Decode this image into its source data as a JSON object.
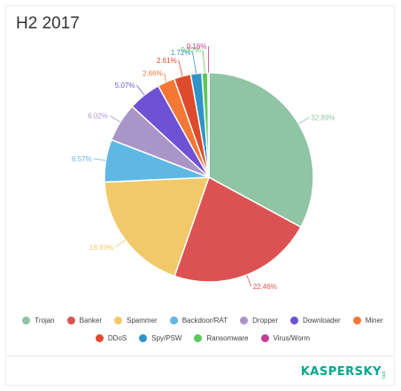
{
  "chart_data": {
    "type": "pie",
    "title": "H2 2017",
    "categories": [
      "Trojan",
      "Banker",
      "Spammer",
      "Backdoor/RAT",
      "Dropper",
      "Downloader",
      "Miner",
      "DDoS",
      "Spy/PSW",
      "Ransomware",
      "Virus/Worm"
    ],
    "values": [
      32.89,
      22.46,
      18.93,
      6.57,
      6.02,
      5.07,
      2.66,
      2.61,
      1.72,
      0.92,
      0.16
    ],
    "labels": [
      "32.89%",
      "22.46%",
      "18.93%",
      "6.57%",
      "6.02%",
      "5.07%",
      "2.66%",
      "2.61%",
      "1.72%",
      "0.92%",
      "0.16%"
    ],
    "colors": [
      "#8fc4a4",
      "#dc5253",
      "#f2c96a",
      "#5fb8e4",
      "#a995c7",
      "#6e52d6",
      "#f47734",
      "#de4a2c",
      "#2f94c8",
      "#5cc95a",
      "#c43d97"
    ],
    "legend_position": "bottom"
  },
  "brand": {
    "name": "KASPERSKY",
    "suffix": "lab"
  }
}
